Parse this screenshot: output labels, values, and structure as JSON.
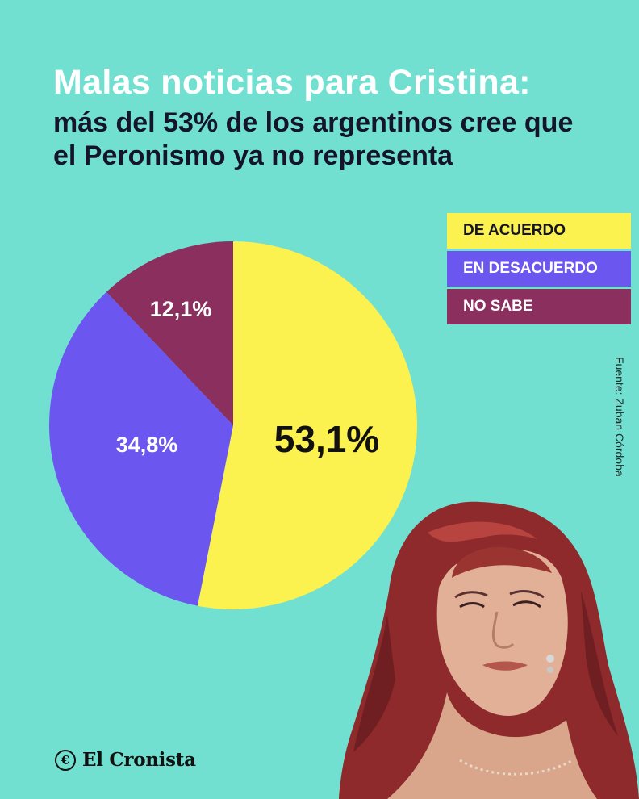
{
  "header": {
    "title": "Malas noticias para Cristina:",
    "subtitle": "más del 53% de los argentinos cree que el Peronismo ya no representa"
  },
  "legend": [
    {
      "label": "DE ACUERDO",
      "color": "#fbf14f",
      "text_color": "#15152a"
    },
    {
      "label": "EN DESACUERDO",
      "color": "#6b57ef",
      "text_color": "#ffffff"
    },
    {
      "label": "NO SABE",
      "color": "#8a2f5e",
      "text_color": "#ffffff"
    }
  ],
  "chart_data": {
    "type": "pie",
    "slices": [
      {
        "name": "DE ACUERDO",
        "value": 53.1,
        "label": "53,1%",
        "color": "#fbf14f",
        "label_color": "#111111"
      },
      {
        "name": "EN DESACUERDO",
        "value": 34.8,
        "label": "34,8%",
        "color": "#6b57ef",
        "label_color": "#ffffff"
      },
      {
        "name": "NO SABE",
        "value": 12.1,
        "label": "12,1%",
        "color": "#8a2f5e",
        "label_color": "#ffffff"
      }
    ],
    "start": "top",
    "direction": "clockwise"
  },
  "source": "Fuente: Zuban Córdoba",
  "brand": {
    "icon": "copyright-c-icon",
    "icon_glyph": "€",
    "name": "El Cronista"
  },
  "colors": {
    "background": "#72e0d1"
  }
}
